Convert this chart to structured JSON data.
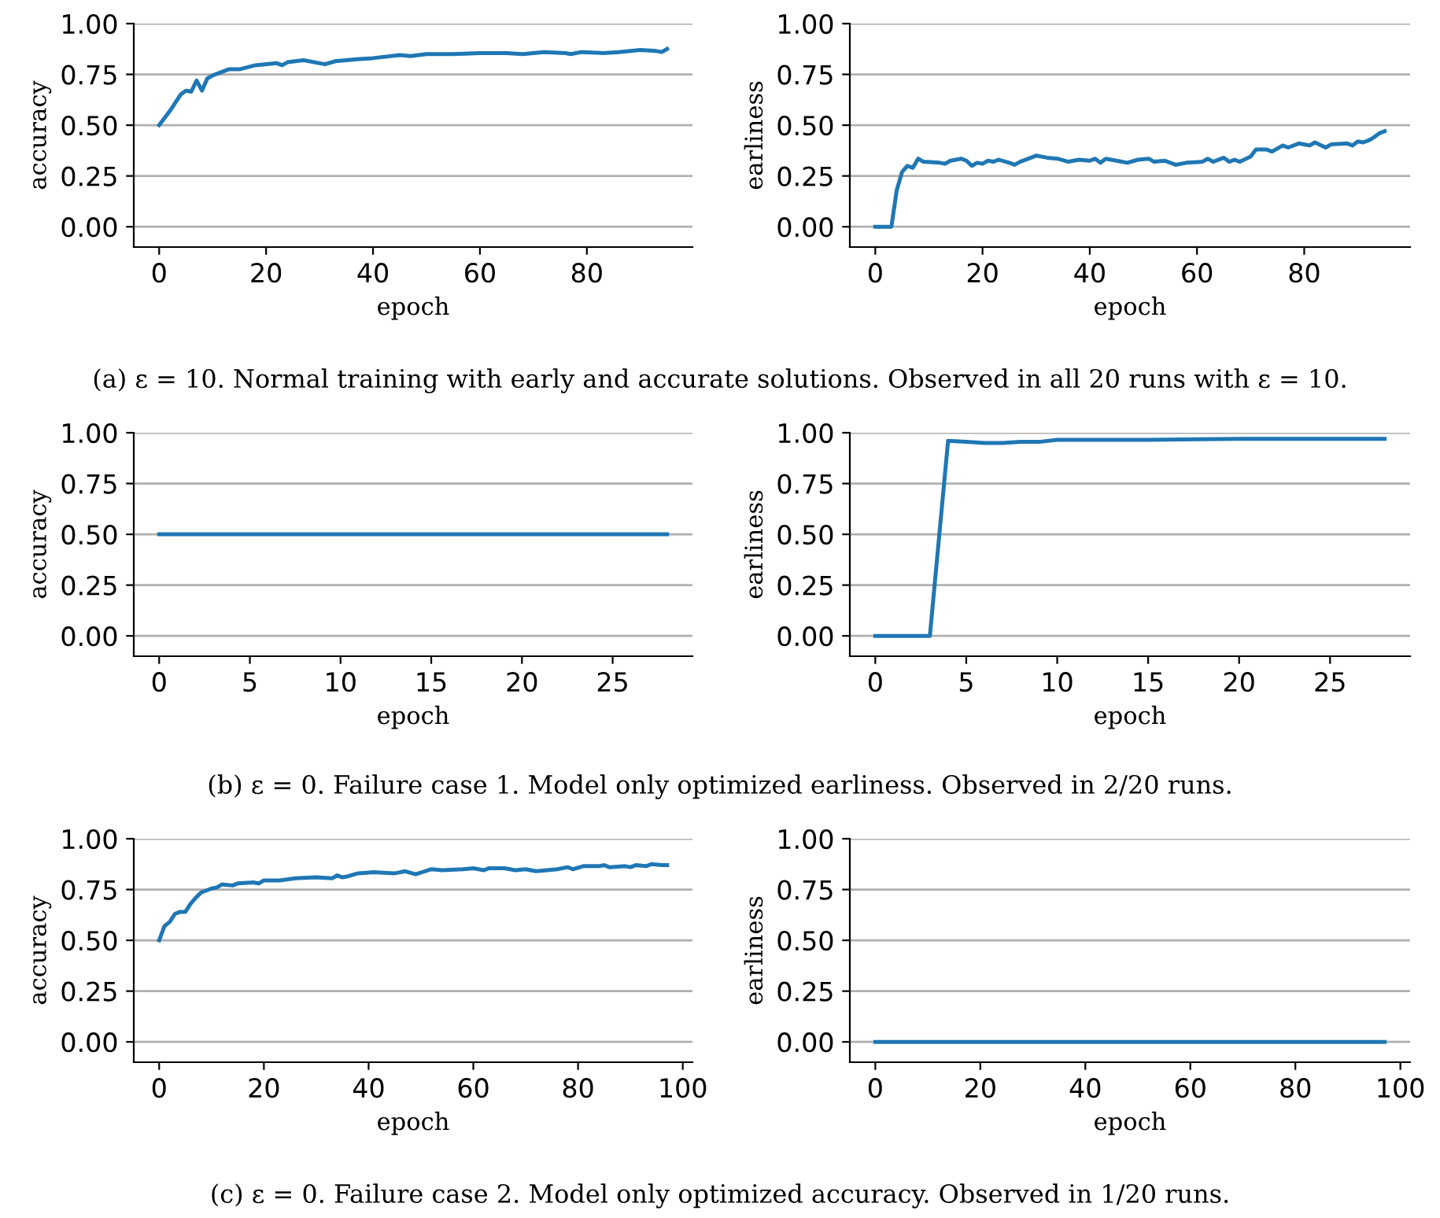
{
  "chart_data": [
    {
      "type": "line",
      "xlabel": "epoch",
      "ylabel": "accuracy",
      "xlim": [
        -4.75,
        99.75
      ],
      "xticks": [
        0,
        20,
        40,
        60,
        80
      ],
      "ylim": [
        -0.1,
        1.0
      ],
      "yticks": [
        {
          "value": 0,
          "label": "0.00"
        },
        {
          "value": 0.25,
          "label": "0.25"
        },
        {
          "value": 0.5,
          "label": "0.50"
        },
        {
          "value": 0.75,
          "label": "0.75"
        },
        {
          "value": 1,
          "label": "1.00"
        }
      ],
      "grid": "y",
      "legend": false,
      "series": [
        {
          "color": "#1f77b4",
          "x": [
            0,
            2,
            4,
            5,
            6,
            7,
            8,
            9,
            10,
            13,
            15,
            18,
            22,
            23,
            24,
            27,
            31,
            33,
            37,
            40,
            45,
            47,
            50,
            55,
            60,
            65,
            68,
            72,
            76,
            77,
            79,
            83,
            86,
            90,
            93,
            94,
            95
          ],
          "values": [
            0.5,
            0.57,
            0.65,
            0.67,
            0.665,
            0.72,
            0.67,
            0.73,
            0.745,
            0.775,
            0.775,
            0.795,
            0.805,
            0.795,
            0.81,
            0.82,
            0.8,
            0.815,
            0.825,
            0.83,
            0.845,
            0.84,
            0.85,
            0.85,
            0.855,
            0.855,
            0.85,
            0.86,
            0.855,
            0.85,
            0.86,
            0.855,
            0.86,
            0.87,
            0.865,
            0.86,
            0.875
          ]
        }
      ],
      "annotations": [
        "(a) ε = 10. Normal training with early and accurate solutions. Observed in all 20 runs with ε = 10."
      ]
    },
    {
      "type": "line",
      "xlabel": "epoch",
      "ylabel": "earliness",
      "xlim": [
        -4.75,
        99.75
      ],
      "xticks": [
        0,
        20,
        40,
        60,
        80
      ],
      "ylim": [
        -0.1,
        1.0
      ],
      "yticks": [
        {
          "value": 0,
          "label": "0.00"
        },
        {
          "value": 0.25,
          "label": "0.25"
        },
        {
          "value": 0.5,
          "label": "0.50"
        },
        {
          "value": 0.75,
          "label": "0.75"
        },
        {
          "value": 1,
          "label": "1.00"
        }
      ],
      "grid": "y",
      "legend": false,
      "series": [
        {
          "color": "#1f77b4",
          "x": [
            0,
            3,
            4,
            5,
            6,
            7,
            8,
            9,
            12,
            13,
            14,
            16,
            17,
            18,
            19,
            20,
            21,
            22,
            23,
            25,
            26,
            27,
            30,
            32,
            34,
            36,
            38,
            40,
            41,
            42,
            43,
            45,
            47,
            49,
            51,
            52,
            54,
            56,
            58,
            61,
            62,
            63,
            65,
            66,
            67,
            68,
            70,
            71,
            73,
            74,
            76,
            77,
            79,
            81,
            82,
            84,
            85,
            88,
            89,
            90,
            91,
            92,
            93,
            94,
            95
          ],
          "values": [
            0,
            0,
            0.18,
            0.27,
            0.3,
            0.29,
            0.335,
            0.32,
            0.315,
            0.31,
            0.325,
            0.335,
            0.325,
            0.3,
            0.315,
            0.31,
            0.325,
            0.32,
            0.33,
            0.315,
            0.305,
            0.32,
            0.35,
            0.34,
            0.335,
            0.32,
            0.33,
            0.325,
            0.335,
            0.315,
            0.335,
            0.325,
            0.315,
            0.33,
            0.335,
            0.32,
            0.325,
            0.305,
            0.315,
            0.32,
            0.335,
            0.32,
            0.34,
            0.32,
            0.33,
            0.32,
            0.345,
            0.38,
            0.38,
            0.37,
            0.4,
            0.39,
            0.41,
            0.4,
            0.415,
            0.39,
            0.405,
            0.41,
            0.4,
            0.42,
            0.415,
            0.425,
            0.44,
            0.46,
            0.47
          ]
        }
      ]
    },
    {
      "type": "line",
      "xlabel": "epoch",
      "ylabel": "accuracy",
      "xlim": [
        -1.4,
        29.4
      ],
      "xticks": [
        0,
        5,
        10,
        15,
        20,
        25
      ],
      "ylim": [
        -0.1,
        1.0
      ],
      "yticks": [
        {
          "value": 0,
          "label": "0.00"
        },
        {
          "value": 0.25,
          "label": "0.25"
        },
        {
          "value": 0.5,
          "label": "0.50"
        },
        {
          "value": 0.75,
          "label": "0.75"
        },
        {
          "value": 1,
          "label": "1.00"
        }
      ],
      "grid": "y",
      "legend": false,
      "series": [
        {
          "color": "#1f77b4",
          "x": [
            0,
            28
          ],
          "values": [
            0.5,
            0.5
          ]
        }
      ],
      "annotations": [
        "(b) ε = 0. Failure case 1. Model only optimized earliness. Observed in 2/20 runs."
      ]
    },
    {
      "type": "line",
      "xlabel": "epoch",
      "ylabel": "earliness",
      "xlim": [
        -1.4,
        29.4
      ],
      "xticks": [
        0,
        5,
        10,
        15,
        20,
        25
      ],
      "ylim": [
        -0.1,
        1.0
      ],
      "yticks": [
        {
          "value": 0,
          "label": "0.00"
        },
        {
          "value": 0.25,
          "label": "0.25"
        },
        {
          "value": 0.5,
          "label": "0.50"
        },
        {
          "value": 0.75,
          "label": "0.75"
        },
        {
          "value": 1,
          "label": "1.00"
        }
      ],
      "grid": "y",
      "legend": false,
      "series": [
        {
          "color": "#1f77b4",
          "x": [
            0,
            1,
            2,
            3,
            4,
            5,
            6,
            7,
            8,
            9,
            10,
            15,
            20,
            25,
            28
          ],
          "values": [
            0,
            0,
            0,
            0,
            0.96,
            0.955,
            0.95,
            0.95,
            0.955,
            0.955,
            0.965,
            0.965,
            0.97,
            0.97,
            0.97
          ]
        }
      ]
    },
    {
      "type": "line",
      "xlabel": "epoch",
      "ylabel": "accuracy",
      "xlim": [
        -4.85,
        101.85
      ],
      "xticks": [
        0,
        20,
        40,
        60,
        80,
        100
      ],
      "ylim": [
        -0.1,
        1.0
      ],
      "yticks": [
        {
          "value": 0,
          "label": "0.00"
        },
        {
          "value": 0.25,
          "label": "0.25"
        },
        {
          "value": 0.5,
          "label": "0.50"
        },
        {
          "value": 0.75,
          "label": "0.75"
        },
        {
          "value": 1,
          "label": "1.00"
        }
      ],
      "grid": "y",
      "legend": false,
      "series": [
        {
          "color": "#1f77b4",
          "x": [
            0,
            1,
            2,
            3,
            4,
            5,
            6,
            7,
            8,
            10,
            11,
            12,
            14,
            15,
            18,
            19,
            20,
            23,
            26,
            30,
            33,
            34,
            35,
            36,
            38,
            41,
            45,
            47,
            49,
            52,
            54,
            58,
            60,
            62,
            63,
            66,
            68,
            70,
            72,
            76,
            78,
            79,
            81,
            84,
            85,
            86,
            89,
            90,
            91,
            93,
            94,
            96,
            97
          ],
          "values": [
            0.5,
            0.57,
            0.59,
            0.63,
            0.64,
            0.64,
            0.68,
            0.71,
            0.735,
            0.755,
            0.76,
            0.775,
            0.77,
            0.78,
            0.785,
            0.78,
            0.795,
            0.795,
            0.805,
            0.81,
            0.805,
            0.82,
            0.81,
            0.815,
            0.83,
            0.835,
            0.83,
            0.84,
            0.825,
            0.85,
            0.845,
            0.85,
            0.855,
            0.845,
            0.855,
            0.855,
            0.845,
            0.85,
            0.84,
            0.85,
            0.86,
            0.85,
            0.865,
            0.865,
            0.87,
            0.86,
            0.865,
            0.86,
            0.87,
            0.865,
            0.875,
            0.87,
            0.87
          ]
        }
      ],
      "annotations": [
        "(c) ε = 0. Failure case 2. Model only optimized accuracy. Observed in 1/20 runs."
      ]
    },
    {
      "type": "line",
      "xlabel": "epoch",
      "ylabel": "earliness",
      "xlim": [
        -4.85,
        101.85
      ],
      "xticks": [
        0,
        20,
        40,
        60,
        80,
        100
      ],
      "ylim": [
        -0.1,
        1.0
      ],
      "yticks": [
        {
          "value": 0,
          "label": "0.00"
        },
        {
          "value": 0.25,
          "label": "0.25"
        },
        {
          "value": 0.5,
          "label": "0.50"
        },
        {
          "value": 0.75,
          "label": "0.75"
        },
        {
          "value": 1,
          "label": "1.00"
        }
      ],
      "grid": "y",
      "legend": false,
      "series": [
        {
          "color": "#1f77b4",
          "x": [
            0,
            97
          ],
          "values": [
            0,
            0
          ]
        }
      ]
    }
  ]
}
